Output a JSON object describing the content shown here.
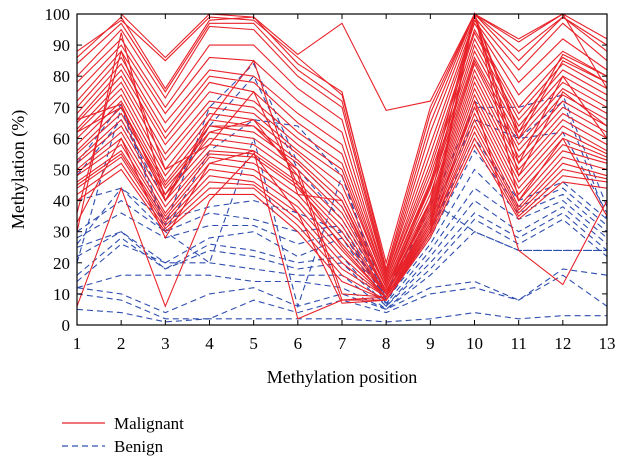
{
  "chart_data": {
    "type": "line",
    "xlabel": "Methylation position",
    "ylabel": "Methylation (%)",
    "x": [
      1,
      2,
      3,
      4,
      5,
      6,
      7,
      8,
      9,
      10,
      11,
      12,
      13
    ],
    "xlim": [
      1,
      13
    ],
    "ylim": [
      0,
      100
    ],
    "xticks": [
      "1",
      "2",
      "3",
      "4",
      "5",
      "6",
      "7",
      "8",
      "9",
      "10",
      "11",
      "12",
      "13"
    ],
    "yticks": [
      "0",
      "10",
      "20",
      "30",
      "40",
      "50",
      "60",
      "70",
      "80",
      "90",
      "100"
    ],
    "grid": false,
    "legend_position": "bottom-left",
    "colors": {
      "malignant": "#e8232a",
      "benign": "#2f4fb0"
    },
    "groups": [
      {
        "name": "Malignant",
        "style": "solid",
        "color": "#e8232a",
        "series": [
          [
            100,
            100,
            86,
            100,
            99,
            87,
            97,
            69,
            72,
            100,
            92,
            100,
            76
          ],
          [
            88,
            98,
            85,
            99,
            98,
            86,
            74,
            20,
            70,
            100,
            91,
            100,
            92
          ],
          [
            86,
            99,
            76,
            98,
            99,
            84,
            75,
            18,
            68,
            100,
            88,
            99,
            90
          ],
          [
            84,
            97,
            75,
            97,
            97,
            82,
            72,
            17,
            65,
            100,
            85,
            99,
            88
          ],
          [
            80,
            95,
            73,
            96,
            95,
            80,
            70,
            16,
            62,
            99,
            82,
            97,
            85
          ],
          [
            78,
            92,
            70,
            90,
            90,
            76,
            66,
            16,
            58,
            98,
            78,
            92,
            82
          ],
          [
            75,
            90,
            68,
            86,
            85,
            72,
            62,
            15,
            55,
            97,
            74,
            88,
            80
          ],
          [
            72,
            88,
            65,
            82,
            80,
            68,
            58,
            15,
            52,
            95,
            70,
            86,
            78
          ],
          [
            70,
            86,
            62,
            80,
            78,
            65,
            55,
            14,
            50,
            94,
            68,
            84,
            76
          ],
          [
            68,
            84,
            60,
            78,
            75,
            62,
            52,
            14,
            48,
            92,
            66,
            82,
            74
          ],
          [
            66,
            82,
            58,
            75,
            72,
            60,
            50,
            13,
            46,
            90,
            64,
            80,
            72
          ],
          [
            65,
            80,
            55,
            72,
            70,
            58,
            48,
            13,
            45,
            88,
            62,
            78,
            70
          ],
          [
            63,
            78,
            53,
            70,
            68,
            56,
            45,
            12,
            44,
            86,
            60,
            76,
            68
          ],
          [
            62,
            76,
            50,
            68,
            66,
            55,
            42,
            12,
            42,
            85,
            58,
            74,
            66
          ],
          [
            60,
            74,
            48,
            66,
            64,
            53,
            40,
            12,
            40,
            84,
            56,
            72,
            64
          ],
          [
            58,
            72,
            46,
            64,
            62,
            52,
            38,
            11,
            39,
            82,
            54,
            70,
            62
          ],
          [
            56,
            70,
            45,
            62,
            60,
            50,
            36,
            11,
            38,
            80,
            52,
            68,
            60
          ],
          [
            55,
            68,
            44,
            60,
            58,
            48,
            34,
            11,
            37,
            78,
            50,
            66,
            58
          ],
          [
            53,
            66,
            42,
            58,
            56,
            46,
            32,
            10,
            36,
            76,
            48,
            64,
            56
          ],
          [
            52,
            64,
            40,
            56,
            55,
            45,
            30,
            10,
            35,
            74,
            46,
            62,
            55
          ],
          [
            50,
            62,
            38,
            55,
            54,
            44,
            28,
            10,
            34,
            72,
            44,
            60,
            54
          ],
          [
            49,
            60,
            36,
            54,
            52,
            42,
            26,
            10,
            33,
            70,
            42,
            58,
            53
          ],
          [
            48,
            58,
            35,
            52,
            50,
            40,
            24,
            9,
            32,
            68,
            40,
            56,
            52
          ],
          [
            46,
            56,
            34,
            50,
            48,
            38,
            22,
            9,
            31,
            66,
            38,
            54,
            50
          ],
          [
            45,
            55,
            33,
            48,
            46,
            36,
            20,
            9,
            30,
            64,
            37,
            52,
            48
          ],
          [
            44,
            54,
            32,
            46,
            45,
            34,
            18,
            9,
            30,
            62,
            36,
            50,
            47
          ],
          [
            42,
            52,
            31,
            44,
            44,
            32,
            16,
            8,
            29,
            60,
            35,
            48,
            46
          ],
          [
            40,
            50,
            30,
            42,
            42,
            30,
            14,
            8,
            28,
            58,
            34,
            46,
            44
          ],
          [
            66,
            71,
            40,
            62,
            66,
            48,
            8,
            8,
            30,
            100,
            62,
            87,
            80
          ],
          [
            62,
            70,
            42,
            64,
            64,
            50,
            10,
            9,
            33,
            100,
            60,
            85,
            78
          ],
          [
            33,
            60,
            28,
            52,
            56,
            2,
            8,
            9,
            32,
            100,
            40,
            60,
            35
          ],
          [
            6,
            44,
            6,
            40,
            55,
            36,
            7,
            8,
            30,
            72,
            24,
            13,
            40
          ],
          [
            30,
            94,
            40,
            66,
            85,
            42,
            40,
            10,
            45,
            100,
            52,
            80,
            60
          ],
          [
            36,
            88,
            50,
            58,
            75,
            45,
            25,
            9,
            40,
            100,
            48,
            75,
            64
          ]
        ]
      },
      {
        "name": "Benign",
        "style": "dashed",
        "color": "#2f4fb0",
        "series": [
          [
            26,
            44,
            30,
            56,
            66,
            64,
            48,
            8,
            30,
            72,
            60,
            72,
            34
          ],
          [
            52,
            71,
            32,
            70,
            84,
            52,
            38,
            10,
            38,
            70,
            70,
            74,
            38
          ],
          [
            48,
            66,
            40,
            64,
            80,
            50,
            34,
            10,
            35,
            66,
            60,
            62,
            36
          ],
          [
            40,
            44,
            34,
            38,
            40,
            36,
            30,
            9,
            30,
            60,
            40,
            46,
            34
          ],
          [
            30,
            40,
            30,
            36,
            34,
            30,
            32,
            8,
            28,
            56,
            38,
            44,
            32
          ],
          [
            28,
            36,
            28,
            32,
            32,
            26,
            30,
            8,
            26,
            50,
            36,
            42,
            30
          ],
          [
            25,
            30,
            20,
            28,
            30,
            22,
            28,
            7,
            24,
            44,
            34,
            40,
            28
          ],
          [
            22,
            30,
            18,
            26,
            24,
            20,
            22,
            6,
            22,
            40,
            30,
            38,
            26
          ],
          [
            16,
            28,
            18,
            24,
            22,
            18,
            20,
            6,
            20,
            36,
            28,
            36,
            24
          ],
          [
            14,
            26,
            20,
            20,
            18,
            16,
            16,
            5,
            18,
            34,
            26,
            34,
            22
          ],
          [
            12,
            16,
            16,
            16,
            14,
            14,
            12,
            5,
            16,
            30,
            24,
            24,
            24
          ],
          [
            12,
            10,
            4,
            10,
            12,
            6,
            10,
            5,
            12,
            14,
            8,
            18,
            16
          ],
          [
            10,
            8,
            2,
            2,
            8,
            4,
            8,
            4,
            10,
            12,
            8,
            16,
            6
          ],
          [
            5,
            4,
            1,
            2,
            2,
            2,
            2,
            1,
            2,
            4,
            2,
            3,
            3
          ],
          [
            20,
            70,
            30,
            20,
            60,
            6,
            48,
            6,
            40,
            30,
            24,
            24,
            24
          ]
        ]
      }
    ]
  },
  "legend": [
    {
      "label": "Malignant",
      "color": "#e8232a",
      "dash": ""
    },
    {
      "label": "Benign",
      "color": "#2f4fb0",
      "dash": "6,4"
    }
  ]
}
